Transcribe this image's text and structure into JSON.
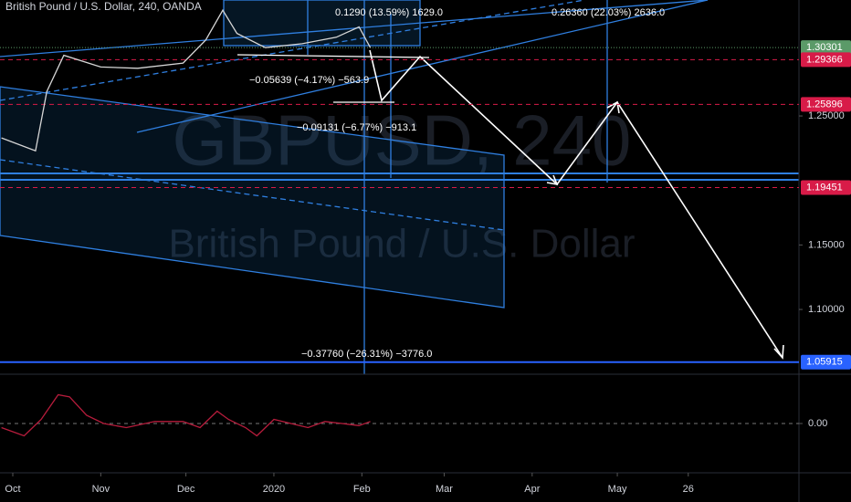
{
  "header": {
    "title": "British Pound / U.S. Dollar, 240, OANDA"
  },
  "watermark": {
    "symbol": "GBPUSD, 240",
    "name": "British Pound / U.S. Dollar"
  },
  "chart_data": [
    {
      "type": "line",
      "color": "#d6d6d6",
      "x": [
        -4,
        8,
        12,
        18,
        31,
        44,
        60,
        68,
        74,
        79,
        89,
        102,
        114,
        122,
        126
      ],
      "values": [
        1.233,
        1.223,
        1.269,
        1.297,
        1.288,
        1.287,
        1.291,
        1.309,
        1.332,
        1.314,
        1.303,
        1.306,
        1.311,
        1.319,
        1.303
      ],
      "xlim": [
        -4.5,
        277
      ],
      "ylim": [
        1.0498,
        1.3399
      ],
      "xticks": [
        {
          "value": 0,
          "label": "Oct"
        },
        {
          "value": 31,
          "label": "Nov"
        },
        {
          "value": 61,
          "label": "Dec"
        },
        {
          "value": 92,
          "label": "2020"
        },
        {
          "value": 123,
          "label": "Feb"
        },
        {
          "value": 152,
          "label": "Mar"
        },
        {
          "value": 183,
          "label": "Apr"
        },
        {
          "value": 213,
          "label": "May"
        },
        {
          "value": 238,
          "label": "26"
        }
      ],
      "yticks": [
        {
          "value": 1.25,
          "label": "1.25000"
        },
        {
          "value": 1.15,
          "label": "1.15000"
        },
        {
          "value": 1.1,
          "label": "1.10000"
        }
      ],
      "levels": [
        {
          "value": 1.30301,
          "color": "#5b9a68"
        },
        {
          "value": 1.29366,
          "color": "#d81b48"
        },
        {
          "value": 1.25896,
          "color": "#d81b48"
        },
        {
          "value": 1.19451,
          "color": "#d81b48"
        },
        {
          "value": 1.05915,
          "color": "#2962ff"
        }
      ],
      "annotations": [
        "0.1290 (13.59%) 1629.0",
        "0.26360 (22.03%) 2636.0",
        "−0.05639 (−4.17%) −563.9",
        "−0.09131 (−6.77%) −913.1",
        "−0.37760 (−26.31%) −3776.0"
      ]
    },
    {
      "type": "line",
      "color": "#b71c3c",
      "x": [
        -4,
        4,
        10,
        16,
        20,
        26,
        32,
        40,
        50,
        60,
        66,
        72,
        76,
        82,
        86,
        92,
        98,
        104,
        110,
        116,
        122,
        126
      ],
      "values": [
        -0.1,
        -0.3,
        0.1,
        0.7,
        0.65,
        0.2,
        0.0,
        -0.1,
        0.05,
        0.05,
        -0.1,
        0.3,
        0.1,
        -0.1,
        -0.3,
        0.1,
        0.0,
        -0.1,
        0.05,
        0.0,
        -0.05,
        0.05
      ],
      "xlim": [
        -4.5,
        277
      ],
      "ylim": [
        -1.2,
        1.2
      ],
      "yticks": [
        {
          "value": 0,
          "label": "0.00"
        }
      ]
    }
  ]
}
